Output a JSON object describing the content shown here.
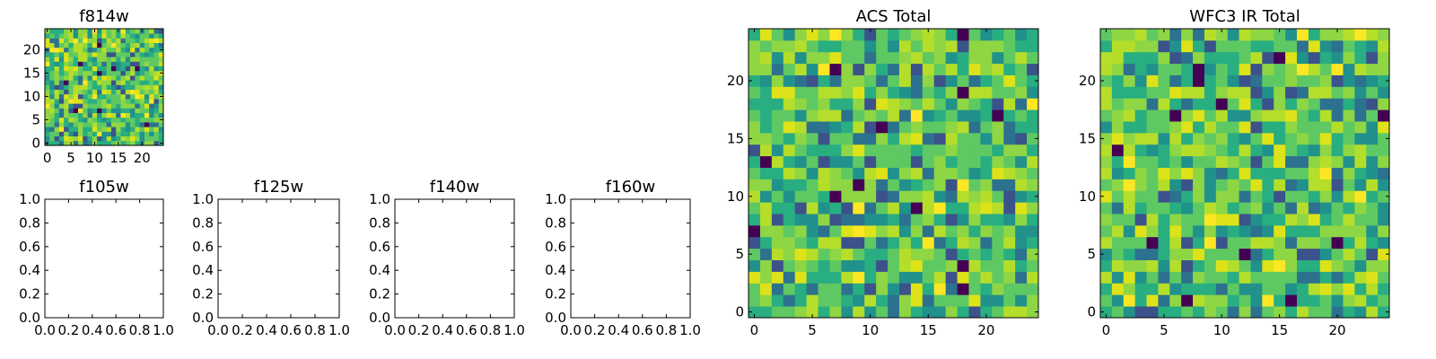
{
  "chart_data": [
    {
      "type": "heatmap",
      "title": "f814w",
      "grid": false,
      "x_ticks": [
        "0",
        "5",
        "10",
        "15",
        "20"
      ],
      "y_ticks": [
        "0",
        "5",
        "10",
        "15",
        "20"
      ],
      "xlim": [
        -0.5,
        24.5
      ],
      "ylim": [
        -0.5,
        24.5
      ],
      "colormap": "viridis",
      "seed": 11
    },
    {
      "type": "empty",
      "title": "f105w",
      "x_ticks": [
        "0.0",
        "0.2",
        "0.4",
        "0.6",
        "0.8",
        "1.0"
      ],
      "y_ticks": [
        "0.0",
        "0.2",
        "0.4",
        "0.6",
        "0.8",
        "1.0"
      ],
      "xlim": [
        0,
        1
      ],
      "ylim": [
        0,
        1
      ]
    },
    {
      "type": "empty",
      "title": "f125w",
      "x_ticks": [
        "0.0",
        "0.2",
        "0.4",
        "0.6",
        "0.8",
        "1.0"
      ],
      "y_ticks": [
        "0.0",
        "0.2",
        "0.4",
        "0.6",
        "0.8",
        "1.0"
      ],
      "xlim": [
        0,
        1
      ],
      "ylim": [
        0,
        1
      ]
    },
    {
      "type": "empty",
      "title": "f140w",
      "x_ticks": [
        "0.0",
        "0.2",
        "0.4",
        "0.6",
        "0.8",
        "1.0"
      ],
      "y_ticks": [
        "0.0",
        "0.2",
        "0.4",
        "0.6",
        "0.8",
        "1.0"
      ],
      "xlim": [
        0,
        1
      ],
      "ylim": [
        0,
        1
      ]
    },
    {
      "type": "empty",
      "title": "f160w",
      "x_ticks": [
        "0.0",
        "0.2",
        "0.4",
        "0.6",
        "0.8",
        "1.0"
      ],
      "y_ticks": [
        "0.0",
        "0.2",
        "0.4",
        "0.6",
        "0.8",
        "1.0"
      ],
      "xlim": [
        0,
        1
      ],
      "ylim": [
        0,
        1
      ]
    },
    {
      "type": "heatmap",
      "title": "ACS Total",
      "grid": false,
      "x_ticks": [
        "0",
        "5",
        "10",
        "15",
        "20"
      ],
      "y_ticks": [
        "0",
        "5",
        "10",
        "15",
        "20"
      ],
      "xlim": [
        -0.5,
        24.5
      ],
      "ylim": [
        -0.5,
        24.5
      ],
      "colormap": "viridis",
      "seed": 23
    },
    {
      "type": "heatmap",
      "title": "WFC3 IR Total",
      "grid": false,
      "x_ticks": [
        "0",
        "5",
        "10",
        "15",
        "20"
      ],
      "y_ticks": [
        "0",
        "5",
        "10",
        "15",
        "20"
      ],
      "xlim": [
        -0.5,
        24.5
      ],
      "ylim": [
        -0.5,
        24.5
      ],
      "colormap": "viridis",
      "seed": 37
    }
  ]
}
